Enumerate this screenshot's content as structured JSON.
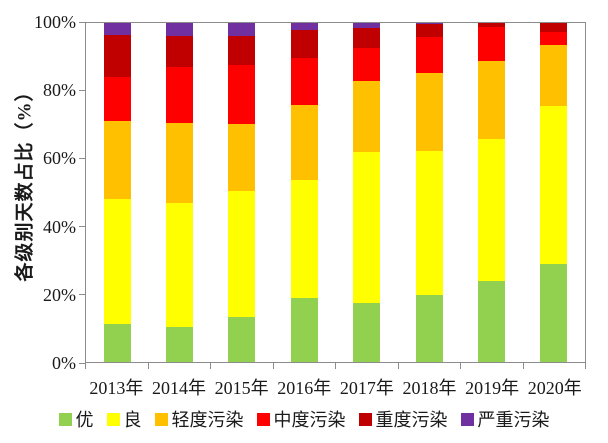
{
  "chart_data": {
    "type": "bar",
    "stacked": true,
    "percent_stacked": true,
    "title": "",
    "xlabel": "",
    "ylabel": "各级别天数占比（%）",
    "ylim": [
      0,
      100
    ],
    "grid": false,
    "legend_position": "bottom",
    "yticks": [
      "0%",
      "20%",
      "40%",
      "60%",
      "80%",
      "100%"
    ],
    "categories": [
      "2013年",
      "2014年",
      "2015年",
      "2016年",
      "2017年",
      "2018年",
      "2019年",
      "2020年"
    ],
    "series": [
      {
        "name": "优",
        "color": "#92D050",
        "values": [
          11.2,
          10.4,
          13.4,
          18.9,
          17.5,
          19.7,
          23.8,
          29.0
        ]
      },
      {
        "name": "良",
        "color": "#FFFF00",
        "values": [
          37.0,
          36.6,
          37.0,
          34.7,
          44.5,
          42.5,
          42.0,
          46.5
        ]
      },
      {
        "name": "轻度污染",
        "color": "#FFC000",
        "values": [
          23.0,
          23.6,
          19.7,
          22.1,
          21.0,
          23.0,
          23.0,
          18.0
        ]
      },
      {
        "name": "中度污染",
        "color": "#FF0000",
        "values": [
          12.9,
          16.4,
          17.5,
          14.0,
          9.5,
          10.7,
          10.1,
          3.8
        ]
      },
      {
        "name": "重度污染",
        "color": "#C00000",
        "values": [
          12.3,
          9.2,
          8.6,
          8.3,
          6.1,
          3.8,
          1.1,
          2.7
        ]
      },
      {
        "name": "严重污染",
        "color": "#7030A0",
        "values": [
          3.6,
          3.8,
          3.8,
          2.0,
          1.4,
          0.3,
          0.0,
          0.0
        ]
      }
    ],
    "axis_color": "#8c8c8c"
  }
}
